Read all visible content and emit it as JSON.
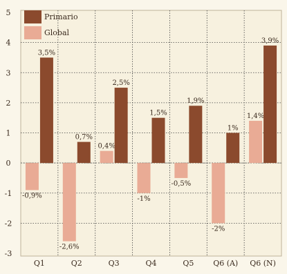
{
  "chart_data": {
    "type": "bar",
    "categories": [
      "Q1",
      "Q2",
      "Q3",
      "Q4",
      "Q5",
      "Q6 (A)",
      "Q6 (N)"
    ],
    "series": [
      {
        "name": "Primario",
        "color": "#8b4a2d",
        "values": [
          3.5,
          0.7,
          2.5,
          1.5,
          1.9,
          1.0,
          3.9
        ],
        "labels": [
          "3,5%",
          "0,7%",
          "2,5%",
          "1,5%",
          "1,9%",
          "1%",
          "3,9%"
        ]
      },
      {
        "name": "Global",
        "color": "#e9ab95",
        "values": [
          -0.9,
          -2.6,
          0.4,
          -1.0,
          -0.5,
          -2.0,
          1.4
        ],
        "labels": [
          "-0,9%",
          "-2,6%",
          "0,4%",
          "-1%",
          "-0,5%",
          "-2%",
          "1,4%"
        ]
      }
    ],
    "ylim": [
      -3,
      5
    ],
    "yticks": [
      5,
      4,
      3,
      2,
      1,
      0,
      -1,
      -2,
      -3
    ],
    "grid": true,
    "legend": "top-left",
    "title": "",
    "xlabel": "",
    "ylabel": ""
  }
}
